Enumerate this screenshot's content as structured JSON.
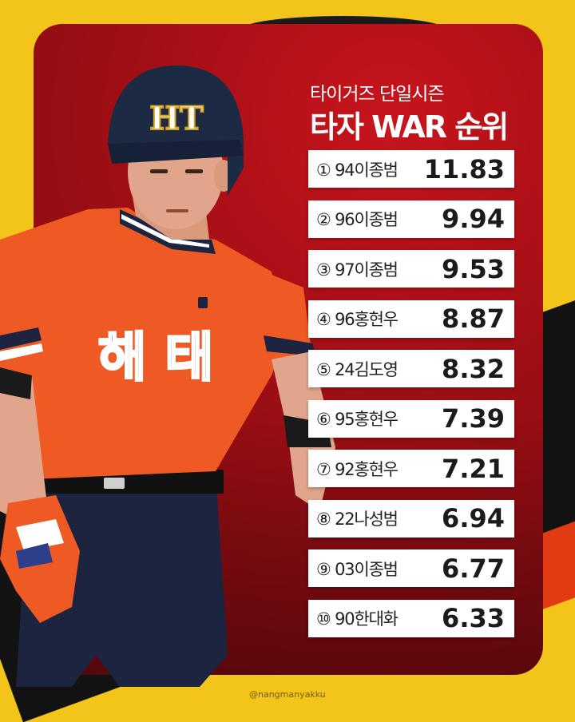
{
  "header": {
    "subtitle": "타이거즈 단일시즌",
    "title": "타자 WAR 순위"
  },
  "player_graphic": {
    "helmet_logo": "HT",
    "jersey_text": "해 태"
  },
  "ranking": [
    {
      "rank": "①",
      "player": "94이종범",
      "war": "11.83"
    },
    {
      "rank": "②",
      "player": "96이종범",
      "war": "9.94"
    },
    {
      "rank": "③",
      "player": "97이종범",
      "war": "9.53"
    },
    {
      "rank": "④",
      "player": "96홍현우",
      "war": "8.87"
    },
    {
      "rank": "⑤",
      "player": "24김도영",
      "war": "8.32"
    },
    {
      "rank": "⑥",
      "player": "95홍현우",
      "war": "7.39"
    },
    {
      "rank": "⑦",
      "player": "92홍현우",
      "war": "7.21"
    },
    {
      "rank": "⑧",
      "player": "22나성범",
      "war": "6.94"
    },
    {
      "rank": "⑨",
      "player": "03이종범",
      "war": "6.77"
    },
    {
      "rank": "⑩",
      "player": "90한대화",
      "war": "6.33"
    }
  ],
  "credit": "@nangmanyakku",
  "colors": {
    "background_yellow": "#f3c51b",
    "card_red": "#b3111a",
    "jersey_orange": "#ef5a24",
    "helmet_navy": "#1c2a44"
  }
}
